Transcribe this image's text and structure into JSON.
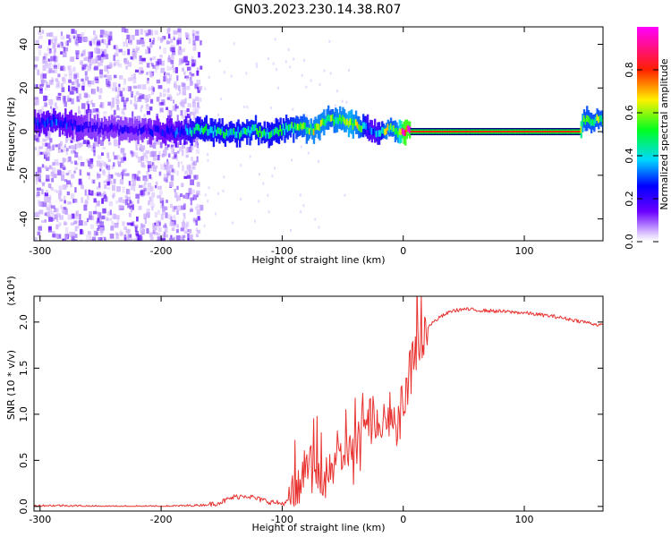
{
  "title": "GN03.2023.230.14.38.R07",
  "colors": {
    "signal": "#e8322f",
    "noise_dark": "#5a00ff",
    "noise_light": "#c9a8ff",
    "frame": "#000000"
  },
  "chart_data": [
    {
      "type": "heatmap",
      "xlabel": "Height of straight line (km)",
      "ylabel": "Frequency (Hz)",
      "xlim": [
        -305,
        165
      ],
      "ylim": [
        -50,
        48
      ],
      "x_ticks": [
        -300,
        -200,
        -100,
        0,
        100
      ],
      "y_ticks": [
        -40,
        -20,
        0,
        20,
        40
      ],
      "grid": false,
      "colorbar": {
        "label": "Normalized spectral amplitude",
        "range": [
          0,
          1
        ],
        "ticks": [
          "0.0",
          "0.2",
          "0.4",
          "0.6",
          "0.8"
        ],
        "colormap": "rainbow (violet → blue → cyan → green → yellow → red → magenta)"
      },
      "noise_region": {
        "x_from": -305,
        "x_to": -168,
        "amplitude": 0.15
      },
      "ridge": {
        "x": [
          -305,
          -290,
          -275,
          -260,
          -240,
          -220,
          -200,
          -185,
          -170,
          -155,
          -140,
          -125,
          -110,
          -95,
          -85,
          -75,
          -65,
          -60,
          -55,
          -50,
          -45,
          -40,
          -35,
          -30,
          -25,
          -20,
          -15,
          -10,
          -5,
          0,
          5,
          10,
          50,
          100,
          145,
          148,
          165
        ],
        "frequency": [
          4,
          5,
          3,
          2,
          1,
          1,
          0,
          0,
          1,
          0,
          -1,
          1,
          -1,
          2,
          2,
          1,
          4,
          6,
          5,
          5,
          4,
          3,
          2,
          1,
          -1,
          -1,
          1,
          2,
          0,
          0,
          0,
          0,
          0,
          0,
          0,
          5,
          5
        ],
        "amplitude": [
          0.25,
          0.3,
          0.25,
          0.2,
          0.2,
          0.2,
          0.25,
          0.3,
          0.45,
          0.45,
          0.45,
          0.5,
          0.45,
          0.5,
          0.55,
          0.6,
          0.6,
          0.55,
          0.6,
          0.6,
          0.65,
          0.6,
          0.55,
          0.35,
          0.3,
          0.4,
          0.6,
          0.55,
          0.6,
          1.0,
          1.0,
          1.0,
          1.0,
          1.0,
          1.0,
          0.55,
          0.55
        ]
      }
    },
    {
      "type": "line",
      "xlabel": "Height of straight line (km)",
      "ylabel": "SNR (10 * v/v)",
      "y_scale_label": "(x10⁴)",
      "xlim": [
        -305,
        165
      ],
      "ylim": [
        -0.05,
        2.28
      ],
      "x_ticks": [
        -300,
        -200,
        -100,
        0,
        100
      ],
      "y_ticks": [
        "0.0",
        "0.5",
        "1.0",
        "1.5",
        "2.0"
      ],
      "grid": false,
      "series": [
        {
          "color": "#e8322f",
          "x": [
            -305,
            -280,
            -250,
            -220,
            -200,
            -175,
            -160,
            -150,
            -140,
            -130,
            -120,
            -110,
            -100,
            -90,
            -85,
            -80,
            -75,
            -70,
            -65,
            -60,
            -55,
            -50,
            -45,
            -40,
            -35,
            -30,
            -25,
            -20,
            -15,
            -10,
            -5,
            0,
            5,
            10,
            15,
            20,
            25,
            30,
            40,
            50,
            60,
            75,
            100,
            125,
            150,
            165
          ],
          "y": [
            0.01,
            0.01,
            0.0,
            0.0,
            0.0,
            0.01,
            0.02,
            0.05,
            0.1,
            0.12,
            0.08,
            0.05,
            0.03,
            0.08,
            0.25,
            0.45,
            0.4,
            0.35,
            0.3,
            0.35,
            0.45,
            0.55,
            0.6,
            0.55,
            0.75,
            1.05,
            0.95,
            0.8,
            0.9,
            1.0,
            0.95,
            1.1,
            1.5,
            1.7,
            1.85,
            1.95,
            2.0,
            2.05,
            2.12,
            2.14,
            2.13,
            2.12,
            2.1,
            2.06,
            2.0,
            1.96
          ]
        }
      ]
    }
  ]
}
